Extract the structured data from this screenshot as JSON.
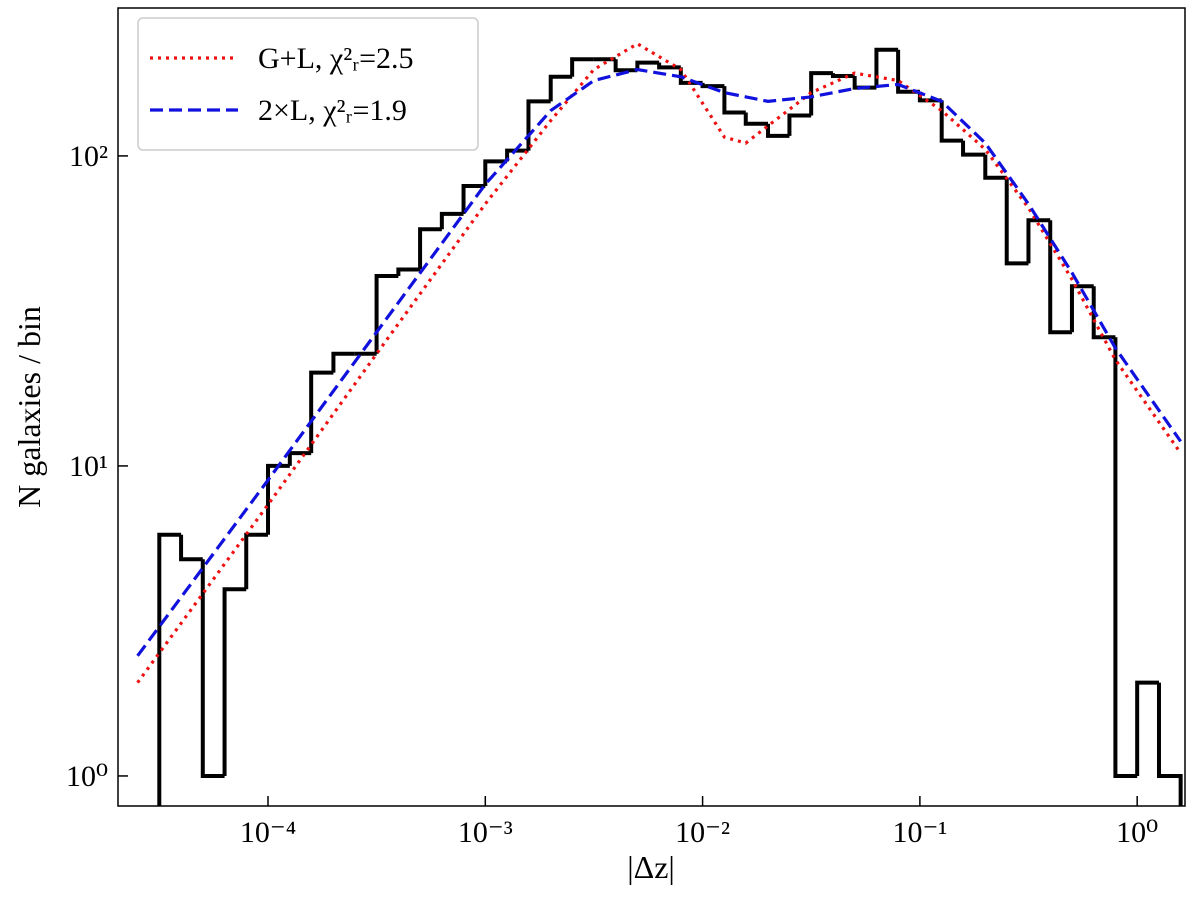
{
  "chart_data": {
    "type": "histogram",
    "xlabel": "|Δz|",
    "ylabel": "N galaxies / bin",
    "xscale": "log",
    "yscale": "log",
    "xlim": [
      2.04e-05,
      1.66
    ],
    "ylim": [
      0.8,
      300
    ],
    "xticks": [
      {
        "value": 0.0001,
        "label": "10⁻⁴"
      },
      {
        "value": 0.001,
        "label": "10⁻³"
      },
      {
        "value": 0.01,
        "label": "10⁻²"
      },
      {
        "value": 0.1,
        "label": "10⁻¹"
      },
      {
        "value": 1,
        "label": "10⁰"
      }
    ],
    "yticks": [
      {
        "value": 1,
        "label": "10⁰"
      },
      {
        "value": 10,
        "label": "10¹"
      },
      {
        "value": 100,
        "label": "10²"
      }
    ],
    "legend": "upper left",
    "color": "#000000",
    "bins": [
      3.16e-05,
      3.98e-05,
      5.01e-05,
      6.31e-05,
      7.94e-05,
      0.0001,
      0.000126,
      0.000158,
      0.0002,
      0.000251,
      0.000316,
      0.000398,
      0.000501,
      0.000631,
      0.000794,
      0.001,
      0.00126,
      0.00158,
      0.002,
      0.00251,
      0.00316,
      0.00398,
      0.00501,
      0.00631,
      0.00794,
      0.01,
      0.0126,
      0.0158,
      0.02,
      0.0251,
      0.0316,
      0.0398,
      0.0501,
      0.0631,
      0.0794,
      0.1,
      0.126,
      0.158,
      0.2,
      0.251,
      0.316,
      0.398,
      0.501,
      0.631,
      0.794,
      1,
      1.26,
      1.585
    ],
    "values": [
      6,
      5,
      1,
      4,
      6,
      10,
      11,
      20,
      23,
      23,
      41,
      43,
      58,
      65,
      80,
      96,
      104,
      150,
      180,
      205,
      205,
      189,
      200,
      193,
      172,
      168,
      138,
      127,
      116,
      135,
      185,
      181,
      166,
      220,
      161,
      151,
      112,
      101,
      85,
      45,
      62,
      27,
      38,
      26,
      1,
      2,
      1
    ],
    "series": [
      {
        "name": "G+L, χ²ᵣ=2.5",
        "color": "#ee1111",
        "style": "dotted",
        "x": [
          2.51e-05,
          0.0001,
          0.000316,
          0.001,
          0.002,
          0.00316,
          0.00501,
          0.00794,
          0.0126,
          0.0158,
          0.02,
          0.0316,
          0.0501,
          0.0794,
          0.126,
          0.2,
          0.316,
          0.501,
          0.794,
          1.585
        ],
        "values": [
          2.0,
          7.5,
          23,
          70,
          130,
          190,
          230,
          190,
          115,
          110,
          125,
          160,
          185,
          175,
          140,
          105,
          68,
          40,
          22,
          11
        ]
      },
      {
        "name": "2×L, χ²ᵣ=1.9",
        "color": "#1111dd",
        "style": "dashed",
        "x": [
          2.51e-05,
          0.0001,
          0.000316,
          0.001,
          0.002,
          0.00316,
          0.00501,
          0.00794,
          0.0126,
          0.02,
          0.0316,
          0.0501,
          0.0794,
          0.126,
          0.2,
          0.316,
          0.501,
          0.794,
          1.585
        ],
        "values": [
          2.44,
          9.0,
          27,
          81,
          140,
          175,
          190,
          180,
          160,
          150,
          155,
          165,
          170,
          150,
          110,
          70,
          42,
          24,
          12
        ]
      }
    ]
  }
}
